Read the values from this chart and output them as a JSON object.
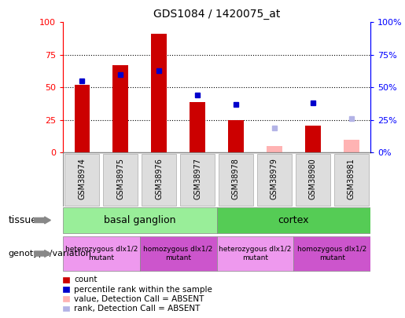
{
  "title": "GDS1084 / 1420075_at",
  "samples": [
    "GSM38974",
    "GSM38975",
    "GSM38976",
    "GSM38977",
    "GSM38978",
    "GSM38979",
    "GSM38980",
    "GSM38981"
  ],
  "count_values": [
    52,
    67,
    91,
    39,
    25,
    null,
    21,
    null
  ],
  "count_absent_values": [
    null,
    null,
    null,
    null,
    null,
    5,
    null,
    10
  ],
  "percentile_values": [
    55,
    60,
    63,
    44,
    37,
    null,
    38,
    null
  ],
  "percentile_absent_values": [
    null,
    null,
    null,
    null,
    null,
    19,
    null,
    26
  ],
  "bar_color": "#cc0000",
  "bar_absent_color": "#ffb3b3",
  "dot_color": "#0000cc",
  "dot_absent_color": "#b3b3e6",
  "tissue_color_bg": "#99ee99",
  "tissue_color_cortex": "#55cc55",
  "geno_color_het": "#ee99ee",
  "geno_color_hom": "#cc55cc",
  "ylim": [
    0,
    100
  ],
  "yticks": [
    0,
    25,
    50,
    75,
    100
  ],
  "legend_items": [
    {
      "label": "count",
      "color": "#cc0000"
    },
    {
      "label": "percentile rank within the sample",
      "color": "#0000cc"
    },
    {
      "label": "value, Detection Call = ABSENT",
      "color": "#ffb3b3"
    },
    {
      "label": "rank, Detection Call = ABSENT",
      "color": "#b3b3e6"
    }
  ]
}
